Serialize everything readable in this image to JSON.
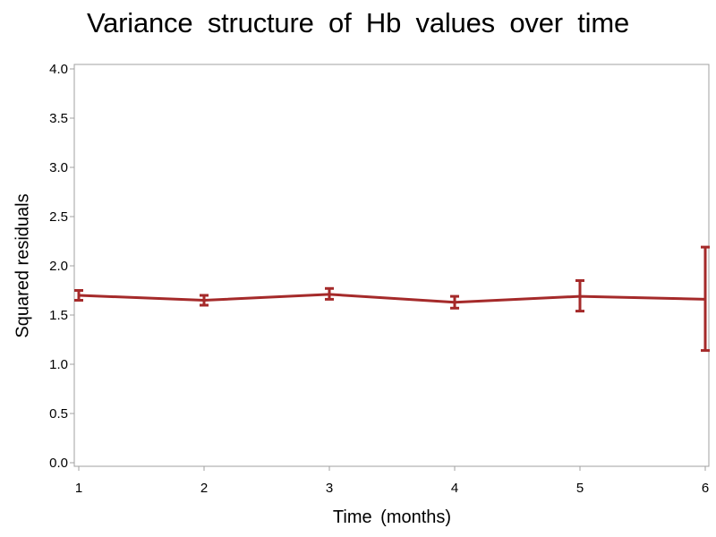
{
  "chart_data": {
    "type": "line",
    "title": "Variance structure of Hb values over time",
    "xlabel": "Time (months)",
    "ylabel": "Squared residuals",
    "xlim": [
      1,
      6
    ],
    "ylim": [
      0,
      4
    ],
    "x_ticks": [
      "1",
      "2",
      "3",
      "4",
      "5",
      "6"
    ],
    "y_ticks": [
      "0.0",
      "0.5",
      "1.0",
      "1.5",
      "2.0",
      "2.5",
      "3.0",
      "3.5",
      "4.0"
    ],
    "grid": false,
    "legend": "none",
    "series": [
      {
        "x": [
          1,
          2,
          3,
          4,
          5,
          6
        ],
        "y": [
          1.7,
          1.65,
          1.71,
          1.63,
          1.69,
          1.66
        ],
        "lower": [
          1.65,
          1.6,
          1.66,
          1.57,
          1.54,
          1.14
        ],
        "upper": [
          1.75,
          1.7,
          1.77,
          1.69,
          1.85,
          2.19
        ],
        "color": "#a52a2a"
      }
    ],
    "colors": {
      "axis": "#a0a0a0",
      "line": "#a52a2a"
    }
  }
}
